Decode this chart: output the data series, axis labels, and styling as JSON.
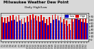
{
  "title": "Milwaukee Weather Dew Point",
  "subtitle": "Daily High/Low",
  "background_color": "#d8d8d8",
  "plot_bg_color": "#d8d8d8",
  "grid_color": "#ffffff",
  "high_color": "#dd0000",
  "low_color": "#0000cc",
  "legend_high": "High",
  "legend_low": "Low",
  "ylim": [
    -5,
    80
  ],
  "yticks": [
    0,
    10,
    20,
    30,
    40,
    50,
    60,
    70
  ],
  "bar_width": 0.42,
  "dates": [
    "7/1",
    "7/2",
    "7/3",
    "7/4",
    "7/5",
    "7/6",
    "7/7",
    "7/8",
    "7/9",
    "7/10",
    "7/11",
    "7/12",
    "7/13",
    "7/14",
    "7/15",
    "7/16",
    "7/17",
    "7/18",
    "7/19",
    "7/20",
    "7/21",
    "7/22",
    "7/23",
    "7/24",
    "7/25",
    "7/26",
    "7/27",
    "7/28",
    "7/29",
    "7/30",
    "7/31"
  ],
  "highs": [
    68,
    65,
    68,
    72,
    74,
    70,
    74,
    62,
    66,
    70,
    74,
    76,
    72,
    70,
    74,
    67,
    62,
    67,
    74,
    76,
    72,
    67,
    62,
    57,
    47,
    72,
    76,
    74,
    70,
    67,
    64
  ],
  "lows": [
    52,
    50,
    54,
    57,
    60,
    54,
    57,
    47,
    52,
    54,
    60,
    64,
    57,
    54,
    57,
    50,
    44,
    50,
    60,
    62,
    57,
    52,
    47,
    42,
    30,
    54,
    62,
    60,
    54,
    52,
    50
  ],
  "dotted_lines": [
    21,
    22,
    23,
    24
  ],
  "title_fontsize": 4.0,
  "tick_fontsize": 2.8,
  "legend_fontsize": 2.5
}
